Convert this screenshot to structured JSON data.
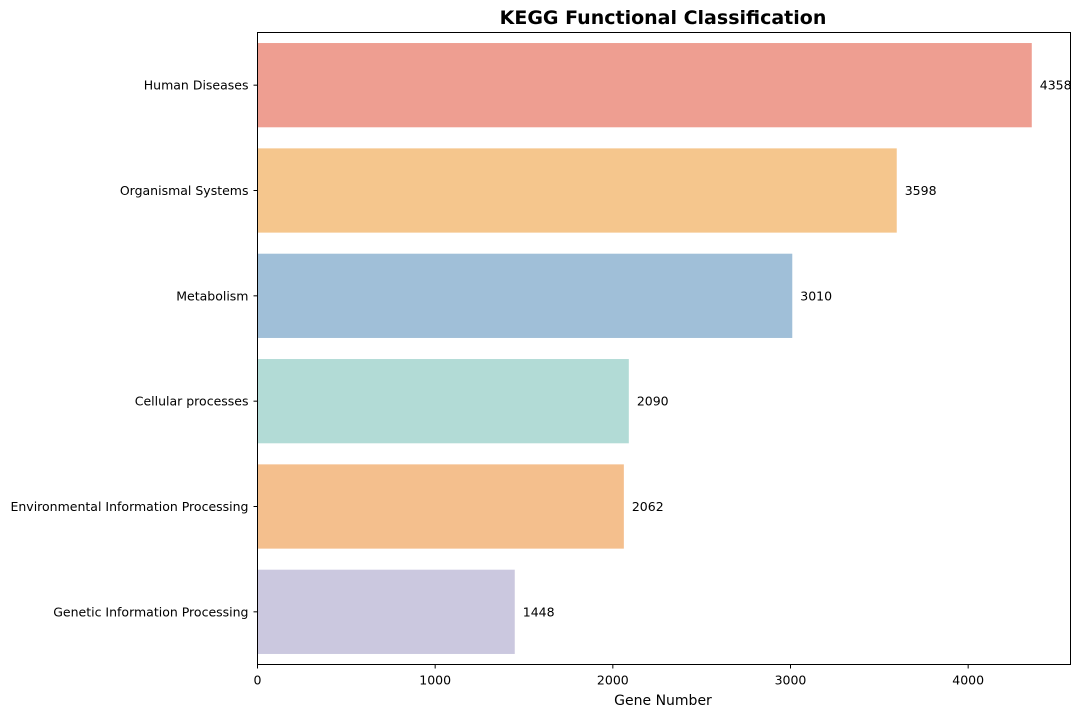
{
  "chart_data": {
    "type": "bar",
    "orientation": "horizontal",
    "title": "KEGG Functional Classification",
    "xlabel": "Gene Number",
    "ylabel": "",
    "categories": [
      "Human Diseases",
      "Organismal Systems",
      "Metabolism",
      "Cellular processes",
      "Environmental Information Processing",
      "Genetic Information Processing"
    ],
    "values": [
      4358,
      3598,
      3010,
      2090,
      2062,
      1448
    ],
    "data_labels": [
      "4358",
      "3598",
      "3010",
      "2090",
      "2062",
      "1448"
    ],
    "colors": [
      "#EE9E91",
      "#F5C68D",
      "#A0BFD8",
      "#B2DBD6",
      "#F4BF8D",
      "#CBC8DF"
    ],
    "xlim": [
      0,
      4576
    ],
    "x_ticks": [
      0,
      1000,
      2000,
      3000,
      4000
    ],
    "x_tick_labels": [
      "0",
      "1000",
      "2000",
      "3000",
      "4000"
    ],
    "grid": false,
    "legend": "none"
  }
}
